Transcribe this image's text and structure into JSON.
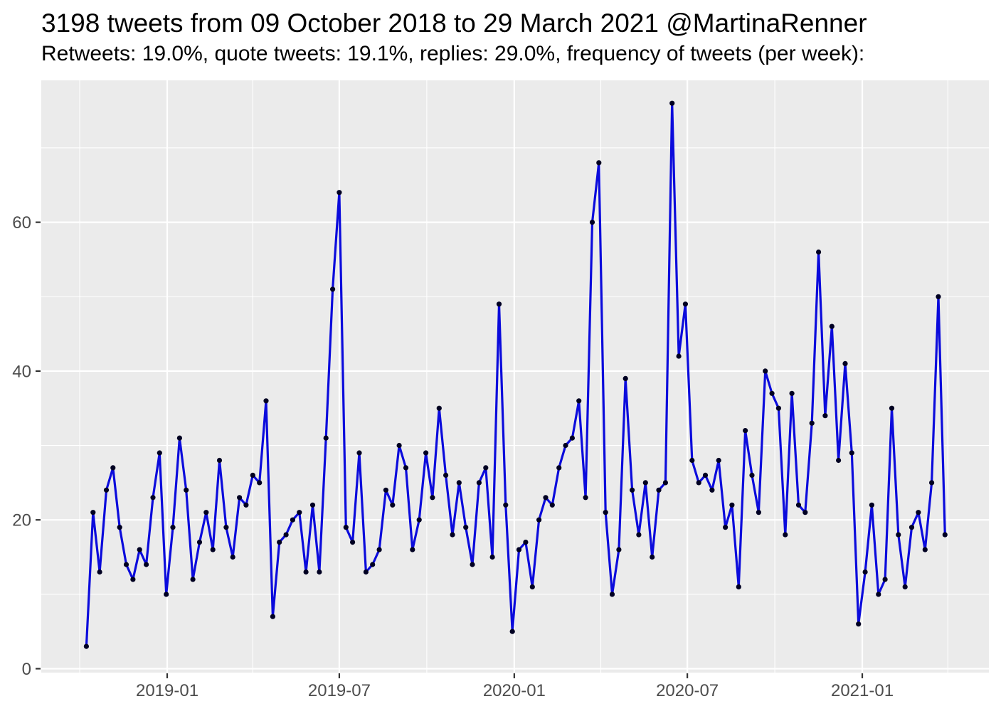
{
  "header": {
    "title": "3198 tweets from 09 October 2018 to 29 March 2021 @MartinaRenner",
    "subtitle": "Retweets: 19.0%, quote tweets: 19.1%, replies: 29.0%, frequency of tweets (per week):"
  },
  "chart_data": {
    "type": "line",
    "title": "3198 tweets from 09 October 2018 to 29 March 2021 @MartinaRenner",
    "subtitle": "Retweets: 19.0%, quote tweets: 19.1%, replies: 29.0%, frequency of tweets (per week):",
    "series_name": "tweets per week",
    "start_week": "2018-10-08",
    "interval_days": 7,
    "values": [
      3,
      21,
      13,
      24,
      27,
      19,
      14,
      12,
      16,
      14,
      23,
      29,
      10,
      19,
      31,
      24,
      12,
      17,
      21,
      16,
      28,
      19,
      15,
      23,
      22,
      26,
      25,
      36,
      7,
      17,
      18,
      20,
      21,
      13,
      22,
      13,
      31,
      51,
      64,
      19,
      17,
      29,
      13,
      14,
      16,
      24,
      22,
      30,
      27,
      16,
      20,
      29,
      23,
      35,
      26,
      18,
      25,
      19,
      14,
      25,
      27,
      15,
      49,
      22,
      5,
      16,
      17,
      11,
      20,
      23,
      22,
      27,
      30,
      31,
      36,
      23,
      60,
      68,
      21,
      10,
      16,
      39,
      24,
      18,
      25,
      15,
      24,
      25,
      76,
      42,
      49,
      28,
      25,
      26,
      24,
      28,
      19,
      22,
      11,
      32,
      26,
      21,
      40,
      37,
      35,
      18,
      37,
      22,
      21,
      33,
      56,
      34,
      46,
      28,
      41,
      29,
      6,
      13,
      22,
      10,
      12,
      35,
      18,
      11,
      19,
      21,
      16,
      25,
      50,
      18
    ],
    "x_ticks": [
      "2019-01",
      "2019-07",
      "2020-01",
      "2020-07",
      "2021-01"
    ],
    "x_tick_weeks": [
      12.143,
      38.0,
      64.286,
      90.286,
      116.571
    ],
    "x_minor_weeks": [
      -1.0,
      25.0,
      51.143,
      77.286,
      103.429,
      129.429
    ],
    "y_ticks": [
      0,
      20,
      40,
      60
    ],
    "y_minor": [
      10,
      30,
      50,
      70
    ],
    "ylim": [
      0,
      76
    ],
    "grid": true,
    "legend": false,
    "line_color": "#0b0bdc",
    "point_color": "#000022",
    "panel_bg": "#ebebeb",
    "grid_color": "#ffffff",
    "tick_color": "#333333",
    "axis_text_color": "#4d4d4d"
  }
}
